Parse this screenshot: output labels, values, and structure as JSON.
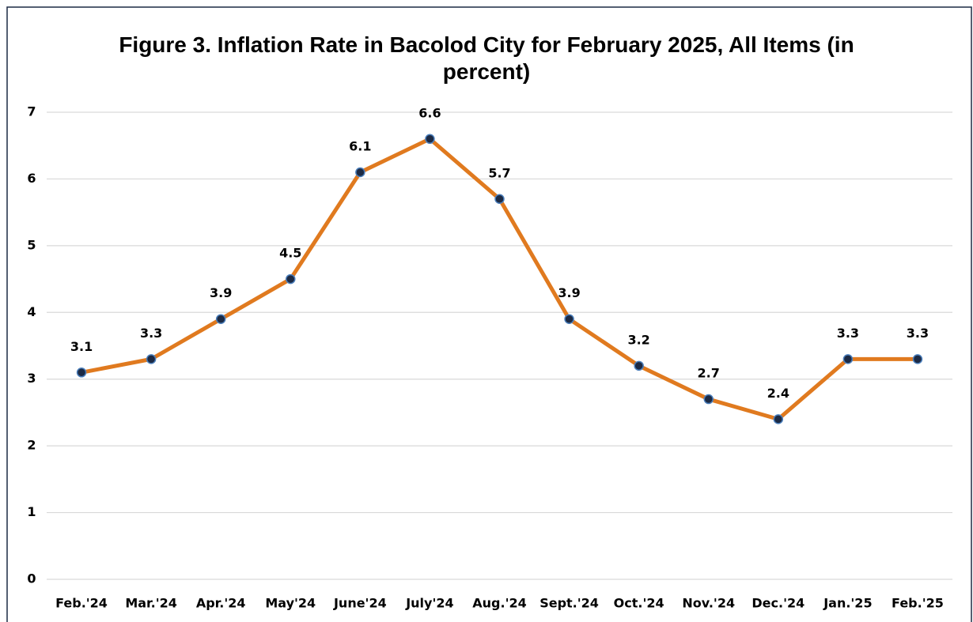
{
  "chart_data": {
    "type": "line",
    "title": "Figure 3. Inflation Rate in Bacolod City for February 2025, All Items (in percent)",
    "categories": [
      "Feb.'24",
      "Mar.'24",
      "Apr.'24",
      "May'24",
      "June'24",
      "July'24",
      "Aug.'24",
      "Sept.'24",
      "Oct.'24",
      "Nov.'24",
      "Dec.'24",
      "Jan.'25",
      "Feb.'25"
    ],
    "values": [
      3.1,
      3.3,
      3.9,
      4.5,
      6.1,
      6.6,
      5.7,
      3.9,
      3.2,
      2.7,
      2.4,
      3.3,
      3.3
    ],
    "color": "#e07a1f",
    "marker_color": "#1c2a44",
    "ylim": [
      0,
      7
    ],
    "yticks": [
      0,
      1,
      2,
      3,
      4,
      5,
      6,
      7
    ],
    "grid": true
  }
}
